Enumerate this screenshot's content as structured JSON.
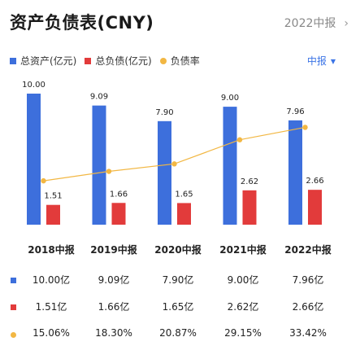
{
  "header": {
    "title": "资产负债表(CNY)",
    "period_link": "2022中报",
    "chevron": "›"
  },
  "legend": {
    "items": [
      {
        "label": "总资产(亿元)",
        "color": "#3d6fdc",
        "shape": "square"
      },
      {
        "label": "总负债(亿元)",
        "color": "#e23b3b",
        "shape": "square"
      },
      {
        "label": "负债率",
        "color": "#f2b743",
        "shape": "circle"
      }
    ]
  },
  "selector": {
    "label": "中报",
    "caret": "▼"
  },
  "chart_data": {
    "type": "bar",
    "categories": [
      "2018中报",
      "2019中报",
      "2020中报",
      "2021中报",
      "2022中报"
    ],
    "series": [
      {
        "name": "总资产(亿元)",
        "kind": "bar",
        "axis": "left",
        "color": "#3d6fdc",
        "values": [
          10.0,
          9.09,
          7.9,
          9.0,
          7.96
        ],
        "labels": [
          "10.00",
          "9.09",
          "7.90",
          "9.00",
          "7.96"
        ]
      },
      {
        "name": "总负债(亿元)",
        "kind": "bar",
        "axis": "left",
        "color": "#e23b3b",
        "values": [
          1.51,
          1.66,
          1.65,
          2.62,
          2.66
        ],
        "labels": [
          "1.51",
          "1.66",
          "1.65",
          "2.62",
          "2.66"
        ]
      },
      {
        "name": "负债率",
        "kind": "line",
        "axis": "right",
        "color": "#f2b743",
        "values": [
          15.06,
          18.3,
          20.87,
          29.15,
          33.42
        ]
      }
    ],
    "ylim": [
      0,
      10
    ],
    "y2lim": [
      0,
      45
    ],
    "grid": false,
    "legend": "top-left"
  },
  "table": {
    "rows": [
      {
        "name": "assets",
        "color": "#3d6fdc",
        "shape": "square",
        "cells": [
          "10.00亿",
          "9.09亿",
          "7.90亿",
          "9.00亿",
          "7.96亿"
        ]
      },
      {
        "name": "liabilities",
        "color": "#e23b3b",
        "shape": "square",
        "cells": [
          "1.51亿",
          "1.66亿",
          "1.65亿",
          "2.62亿",
          "2.66亿"
        ]
      },
      {
        "name": "debt-ratio",
        "color": "#f2b743",
        "shape": "circle",
        "cells": [
          "15.06%",
          "18.30%",
          "20.87%",
          "29.15%",
          "33.42%"
        ]
      }
    ]
  }
}
